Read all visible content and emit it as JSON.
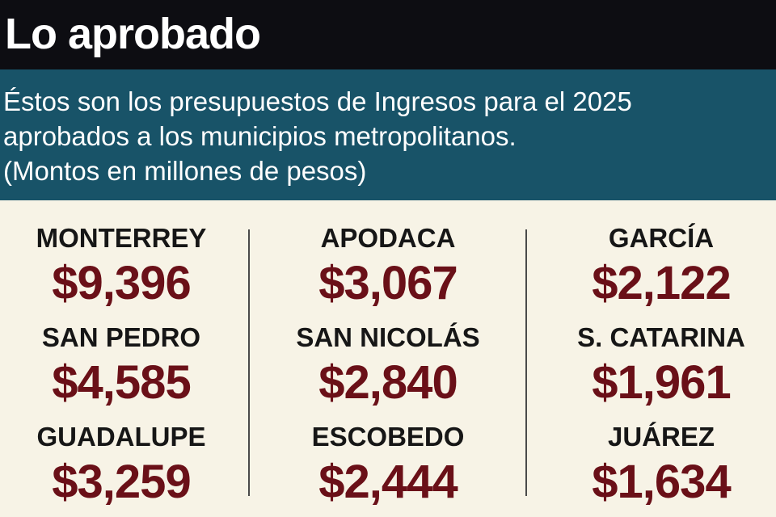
{
  "header": {
    "title": "Lo aprobado"
  },
  "description": {
    "line1": "Éstos son los presupuestos de Ingresos para el 2025",
    "line2": "aprobados a los municipios metropolitanos.",
    "line3": "(Montos en millones de pesos)"
  },
  "municipios": [
    {
      "name": "MONTERREY",
      "amount": "$9,396"
    },
    {
      "name": "SAN PEDRO",
      "amount": "$4,585"
    },
    {
      "name": "GUADALUPE",
      "amount": "$3,259"
    },
    {
      "name": "APODACA",
      "amount": "$3,067"
    },
    {
      "name": "SAN NICOLÁS",
      "amount": "$2,840"
    },
    {
      "name": "ESCOBEDO",
      "amount": "$2,444"
    },
    {
      "name": "GARCÍA",
      "amount": "$2,122"
    },
    {
      "name": "S. CATARINA",
      "amount": "$1,961"
    },
    {
      "name": "JUÁREZ",
      "amount": "$1,634"
    }
  ],
  "colors": {
    "header_bg": "#0d0d12",
    "subtitle_bg": "#185368",
    "body_bg": "#f7f3e6",
    "amount": "#6a1018"
  }
}
